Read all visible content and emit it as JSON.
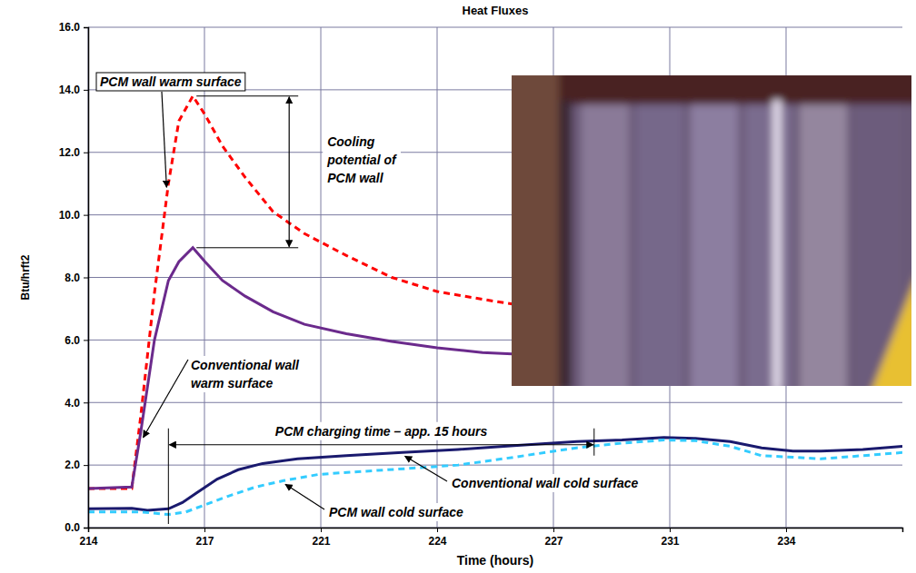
{
  "chart_data": {
    "type": "line",
    "title": "Heat Fluxes",
    "x_label": "Time (hours)",
    "y_label": "Btu/hrft2",
    "xlim": [
      214,
      237.333
    ],
    "xticks": [
      214,
      {
        "value": 217.333,
        "label": "217"
      },
      {
        "value": 220.667,
        "label": "221"
      },
      224,
      {
        "value": 227.333,
        "label": "227"
      },
      {
        "value": 230.667,
        "label": "231"
      },
      234
    ],
    "ylim": [
      0,
      16
    ],
    "yticks": [
      {
        "value": 0,
        "label": "0.0"
      },
      {
        "value": 2,
        "label": "2.0"
      },
      {
        "value": 4,
        "label": "4.0"
      },
      {
        "value": 6,
        "label": "6.0"
      },
      {
        "value": 8,
        "label": "8.0"
      },
      {
        "value": 10,
        "label": "10.0"
      },
      {
        "value": 12,
        "label": "12.0"
      },
      {
        "value": 14,
        "label": "14.0"
      },
      {
        "value": 16,
        "label": "16.0"
      }
    ],
    "grid": true,
    "series": [
      {
        "name": "PCM wall warm surface",
        "color": "#ff0000",
        "line_style": "dashed",
        "x": [
          214,
          215.25,
          215.5,
          215.9,
          216.3,
          216.6,
          217.0,
          217.35,
          217.85,
          218.5,
          219.3,
          220.2,
          221.4,
          222.7,
          224.0,
          225.3,
          226.15
        ],
        "values": [
          1.25,
          1.25,
          3.5,
          7.5,
          11.0,
          13.0,
          13.8,
          13.2,
          12.2,
          11.2,
          10.1,
          9.4,
          8.7,
          8.0,
          7.55,
          7.3,
          7.15
        ]
      },
      {
        "name": "Conventional wall warm surface",
        "color": "#6b2a8c",
        "line_style": "solid",
        "x": [
          214,
          215.25,
          215.5,
          215.9,
          216.3,
          216.6,
          217.0,
          217.35,
          217.85,
          218.5,
          219.3,
          220.2,
          221.4,
          222.7,
          224.0,
          225.3,
          226.15
        ],
        "values": [
          1.25,
          1.3,
          3.0,
          6.0,
          7.9,
          8.5,
          8.95,
          8.5,
          7.9,
          7.4,
          6.9,
          6.5,
          6.2,
          5.95,
          5.75,
          5.6,
          5.55
        ]
      },
      {
        "name": "Conventional wall cold surface",
        "color": "#1a1a6e",
        "line_style": "solid",
        "x": [
          214,
          215.25,
          215.7,
          216.3,
          216.7,
          217.1,
          217.7,
          218.3,
          219.0,
          220.0,
          221.4,
          223.0,
          224.6,
          226.2,
          228.0,
          229.3,
          230.5,
          231.4,
          232.4,
          233.3,
          234.2,
          235.0,
          236.2,
          237.333
        ],
        "values": [
          0.6,
          0.62,
          0.55,
          0.6,
          0.8,
          1.1,
          1.55,
          1.85,
          2.05,
          2.2,
          2.3,
          2.4,
          2.5,
          2.62,
          2.75,
          2.8,
          2.88,
          2.85,
          2.75,
          2.55,
          2.45,
          2.45,
          2.5,
          2.6
        ]
      },
      {
        "name": "PCM wall cold surface",
        "color": "#33ccff",
        "line_style": "dashed",
        "x": [
          214,
          215.5,
          216.3,
          216.8,
          217.4,
          218.0,
          218.8,
          219.6,
          220.6,
          221.9,
          223.3,
          224.6,
          226.2,
          228.0,
          229.3,
          230.5,
          231.4,
          232.4,
          233.3,
          234.2,
          235.0,
          236.2,
          237.333
        ],
        "values": [
          0.5,
          0.5,
          0.42,
          0.5,
          0.75,
          1.0,
          1.3,
          1.5,
          1.7,
          1.8,
          1.9,
          2.0,
          2.25,
          2.55,
          2.7,
          2.8,
          2.78,
          2.6,
          2.3,
          2.25,
          2.2,
          2.3,
          2.4
        ]
      }
    ],
    "annotations": [
      {
        "text": "Cooling potential of PCM wall"
      },
      {
        "text": "PCM charging time – app. 15 hours",
        "x": [
          216.3,
          228.5
        ],
        "y": 2.65
      }
    ],
    "legend": false
  }
}
